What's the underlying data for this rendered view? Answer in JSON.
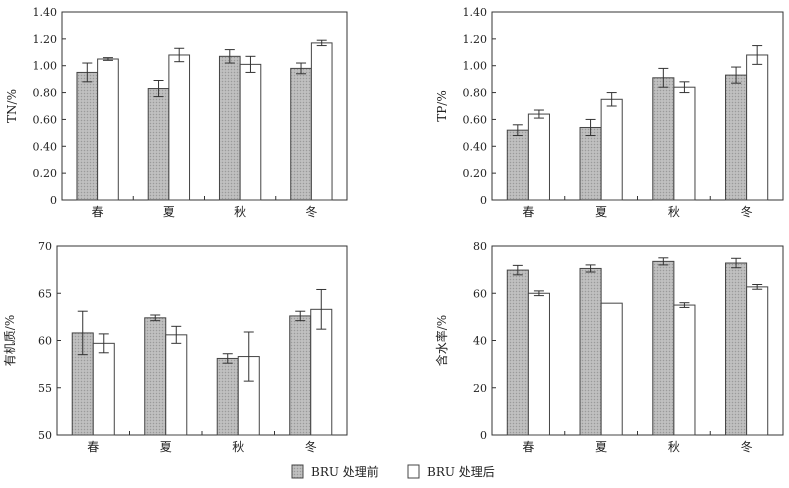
{
  "colors": {
    "before_fill": "#b8b8b8",
    "before_stroke": "#444444",
    "after_fill": "#ffffff",
    "after_stroke": "#444444",
    "axis": "#333333"
  },
  "legend": {
    "before_label": "BRU 处理前",
    "after_label": "BRU 处理后"
  },
  "chart_data": [
    {
      "type": "bar",
      "ylabel": "TN/%",
      "ylim": [
        0,
        1.4
      ],
      "yticks": [
        "0",
        "0.20",
        "0.40",
        "0.60",
        "0.80",
        "1.00",
        "1.20",
        "1.40"
      ],
      "categories": [
        "春",
        "夏",
        "秋",
        "冬"
      ],
      "series": [
        {
          "values": [
            0.95,
            0.83,
            1.07,
            0.98
          ],
          "errors": [
            0.07,
            0.06,
            0.05,
            0.04
          ]
        },
        {
          "values": [
            1.05,
            1.08,
            1.01,
            1.17
          ],
          "errors": [
            0.01,
            0.05,
            0.06,
            0.02
          ]
        }
      ],
      "grid": false
    },
    {
      "type": "bar",
      "ylabel": "TP/%",
      "ylim": [
        0,
        1.4
      ],
      "yticks": [
        "0",
        "0.20",
        "0.40",
        "0.60",
        "0.80",
        "1.00",
        "1.20",
        "1.40"
      ],
      "categories": [
        "春",
        "夏",
        "秋",
        "冬"
      ],
      "series": [
        {
          "values": [
            0.52,
            0.54,
            0.91,
            0.93
          ],
          "errors": [
            0.04,
            0.06,
            0.07,
            0.06
          ]
        },
        {
          "values": [
            0.64,
            0.75,
            0.84,
            1.08
          ],
          "errors": [
            0.03,
            0.05,
            0.04,
            0.07
          ]
        }
      ],
      "grid": false
    },
    {
      "type": "bar",
      "ylabel": "有机质/%",
      "ylim": [
        50,
        70
      ],
      "yticks": [
        "50",
        "55",
        "60",
        "65",
        "70"
      ],
      "categories": [
        "春",
        "夏",
        "秋",
        "冬"
      ],
      "series": [
        {
          "values": [
            60.8,
            62.4,
            58.1,
            62.6
          ],
          "errors": [
            2.3,
            0.3,
            0.5,
            0.5
          ]
        },
        {
          "values": [
            59.7,
            60.6,
            58.3,
            63.3
          ],
          "errors": [
            1.0,
            0.9,
            2.6,
            2.1
          ]
        }
      ],
      "grid": false
    },
    {
      "type": "bar",
      "ylabel": "含水率/%",
      "ylim": [
        0,
        80
      ],
      "yticks": [
        "0",
        "20",
        "40",
        "60",
        "80"
      ],
      "categories": [
        "春",
        "夏",
        "秋",
        "冬"
      ],
      "series": [
        {
          "values": [
            69.8,
            70.5,
            73.5,
            72.8
          ],
          "errors": [
            2.0,
            1.5,
            1.5,
            2.0
          ]
        },
        {
          "values": [
            60.0,
            55.8,
            55.0,
            62.7
          ],
          "errors": [
            1.0,
            0,
            1.0,
            1.0
          ]
        }
      ],
      "grid": false
    }
  ]
}
